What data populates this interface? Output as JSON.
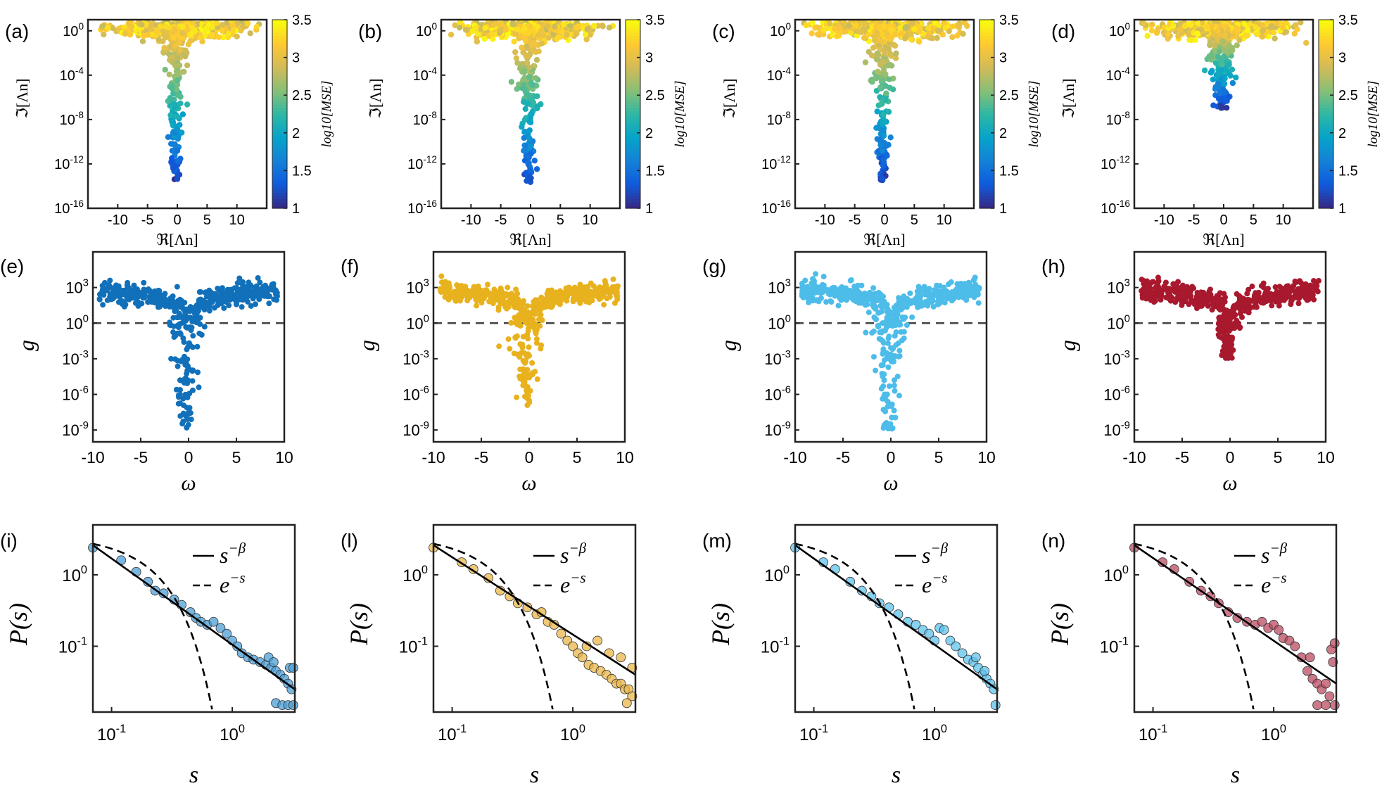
{
  "colors": {
    "blue": "#1170b9",
    "gold": "#e8b21e",
    "light_blue": "#4dbce9",
    "crimson": "#a8192e",
    "axis": "#222222",
    "dashed": "#444444",
    "parula": [
      "#352a87",
      "#0f5cdd",
      "#1481d6",
      "#06a4ca",
      "#2eb7a4",
      "#87bf77",
      "#d1bb59",
      "#fec832",
      "#f9fb0e"
    ]
  },
  "row1": {
    "xlabel": "ℜ[Λn]",
    "ylabel": "ℑ[Λn]",
    "colorbar_label": "log10[MSE]",
    "colorbar_ticks": [
      "1",
      "1.5",
      "2",
      "2.5",
      "3",
      "3.5"
    ],
    "xticks": [
      "-10",
      "-5",
      "0",
      "5",
      "10"
    ],
    "yticks": [
      {
        "base": "10",
        "exp": "0"
      },
      {
        "base": "10",
        "exp": "-4"
      },
      {
        "base": "10",
        "exp": "-8"
      },
      {
        "base": "10",
        "exp": "-12"
      },
      {
        "base": "10",
        "exp": "-16"
      }
    ],
    "panels": [
      {
        "id": "a",
        "label": "(a)"
      },
      {
        "id": "b",
        "label": "(b)"
      },
      {
        "id": "c",
        "label": "(c)"
      },
      {
        "id": "d",
        "label": "(d)"
      }
    ]
  },
  "row2": {
    "xlabel": "ω",
    "ylabel": "g",
    "xticks": [
      "-10",
      "-5",
      "0",
      "5",
      "10"
    ],
    "yticks": [
      {
        "base": "10",
        "exp": "3"
      },
      {
        "base": "10",
        "exp": "0"
      },
      {
        "base": "10",
        "exp": "-3"
      },
      {
        "base": "10",
        "exp": "-6"
      },
      {
        "base": "10",
        "exp": "-9"
      }
    ],
    "panels": [
      {
        "id": "e",
        "label": "(e)",
        "color": "#1170b9"
      },
      {
        "id": "f",
        "label": "(f)",
        "color": "#e8b21e"
      },
      {
        "id": "g",
        "label": "(g)",
        "color": "#4dbce9"
      },
      {
        "id": "h",
        "label": "(h)",
        "color": "#a8192e"
      }
    ]
  },
  "row3": {
    "xlabel": "s",
    "ylabel": "P(s)",
    "legend": [
      {
        "style": "solid",
        "base": "s",
        "exp": "−β"
      },
      {
        "style": "dashed",
        "base": "e",
        "exp": "−s"
      }
    ],
    "xticks": [
      {
        "base": "10",
        "exp": "-1"
      },
      {
        "base": "10",
        "exp": "0"
      }
    ],
    "yticks": [
      {
        "base": "10",
        "exp": "0"
      },
      {
        "base": "10",
        "exp": "-1"
      }
    ],
    "panels": [
      {
        "id": "i",
        "label": "(i)",
        "color": "#4d9fd6"
      },
      {
        "id": "l",
        "label": "(l)",
        "color": "#e9b74a"
      },
      {
        "id": "m",
        "label": "(m)",
        "color": "#5fc2ec"
      },
      {
        "id": "n",
        "label": "(n)",
        "color": "#b94b62"
      }
    ]
  },
  "chart_data": [
    {
      "type": "scatter",
      "panel": "(a)",
      "xlabel": "ℜ[Λn]",
      "ylabel": "ℑ[Λn]",
      "xlim": [
        -15,
        15
      ],
      "ylim": [
        1e-16,
        10
      ],
      "yscale": "log",
      "colorbar": {
        "label": "log10[MSE]",
        "range": [
          1,
          3.5
        ]
      },
      "branch_min_y": 3e-14
    },
    {
      "type": "scatter",
      "panel": "(b)",
      "xlabel": "ℜ[Λn]",
      "ylabel": "ℑ[Λn]",
      "xlim": [
        -15,
        15
      ],
      "ylim": [
        1e-16,
        10
      ],
      "yscale": "log",
      "colorbar": {
        "label": "log10[MSE]",
        "range": [
          1,
          3.5
        ]
      },
      "branch_min_y": 1e-14
    },
    {
      "type": "scatter",
      "panel": "(c)",
      "xlabel": "ℜ[Λn]",
      "ylabel": "ℑ[Λn]",
      "xlim": [
        -15,
        15
      ],
      "ylim": [
        1e-16,
        10
      ],
      "yscale": "log",
      "colorbar": {
        "label": "log10[MSE]",
        "range": [
          1,
          3.5
        ]
      },
      "branch_min_y": 3e-14
    },
    {
      "type": "scatter",
      "panel": "(d)",
      "xlabel": "ℜ[Λn]",
      "ylabel": "ℑ[Λn]",
      "xlim": [
        -15,
        15
      ],
      "ylim": [
        1e-16,
        10
      ],
      "yscale": "log",
      "colorbar": {
        "label": "log10[MSE]",
        "range": [
          1,
          3.5
        ]
      },
      "branch_min_y": 1e-07
    },
    {
      "type": "scatter",
      "panel": "(e)",
      "xlabel": "ω",
      "ylabel": "g",
      "xlim": [
        -10,
        10
      ],
      "ylim": [
        1e-10,
        1000000.0
      ],
      "yscale": "log",
      "reference_line": {
        "y": 1,
        "style": "dashed"
      },
      "min_g": 1e-09
    },
    {
      "type": "scatter",
      "panel": "(f)",
      "xlabel": "ω",
      "ylabel": "g",
      "xlim": [
        -10,
        10
      ],
      "ylim": [
        1e-10,
        1000000.0
      ],
      "yscale": "log",
      "reference_line": {
        "y": 1,
        "style": "dashed"
      },
      "min_g": 1e-07
    },
    {
      "type": "scatter",
      "panel": "(g)",
      "xlabel": "ω",
      "ylabel": "g",
      "xlim": [
        -10,
        10
      ],
      "ylim": [
        1e-10,
        1000000.0
      ],
      "yscale": "log",
      "reference_line": {
        "y": 1,
        "style": "dashed"
      },
      "min_g": 1e-09
    },
    {
      "type": "scatter",
      "panel": "(h)",
      "xlabel": "ω",
      "ylabel": "g",
      "xlim": [
        -10,
        10
      ],
      "ylim": [
        1e-10,
        1000000.0
      ],
      "yscale": "log",
      "reference_line": {
        "y": 1,
        "style": "dashed"
      },
      "min_g": 0.001
    },
    {
      "type": "scatter",
      "panel": "(i)",
      "xlabel": "s",
      "ylabel": "P(s)",
      "xlim": [
        0.07,
        3.3
      ],
      "ylim": [
        0.012,
        5
      ],
      "xscale": "log",
      "yscale": "log",
      "fits": [
        {
          "name": "s^-β",
          "kind": "power",
          "x0": 0.07,
          "y0": 2.6,
          "x1": 3.3,
          "y1": 0.025
        },
        {
          "name": "e^-s",
          "kind": "exponential"
        }
      ],
      "points": [
        [
          0.07,
          2.4
        ],
        [
          0.12,
          1.6
        ],
        [
          0.16,
          1.1
        ],
        [
          0.2,
          0.8
        ],
        [
          0.23,
          0.6
        ],
        [
          0.27,
          0.55
        ],
        [
          0.33,
          0.45
        ],
        [
          0.38,
          0.38
        ],
        [
          0.45,
          0.3
        ],
        [
          0.5,
          0.25
        ],
        [
          0.55,
          0.22
        ],
        [
          0.62,
          0.2
        ],
        [
          0.7,
          0.22
        ],
        [
          0.8,
          0.18
        ],
        [
          0.9,
          0.15
        ],
        [
          1.0,
          0.12
        ],
        [
          1.1,
          0.1
        ],
        [
          1.2,
          0.08
        ],
        [
          1.35,
          0.07
        ],
        [
          1.5,
          0.065
        ],
        [
          1.7,
          0.06
        ],
        [
          1.9,
          0.055
        ],
        [
          2.1,
          0.05
        ],
        [
          2.3,
          0.045
        ],
        [
          2.5,
          0.04
        ],
        [
          2.7,
          0.035
        ],
        [
          2.9,
          0.03
        ],
        [
          3.1,
          0.025
        ],
        [
          2.3,
          0.016
        ],
        [
          2.6,
          0.015
        ],
        [
          2.9,
          0.015
        ],
        [
          3.2,
          0.015
        ],
        [
          2.0,
          0.07
        ],
        [
          2.2,
          0.06
        ],
        [
          3.0,
          0.05
        ],
        [
          3.2,
          0.05
        ]
      ]
    },
    {
      "type": "scatter",
      "panel": "(l)",
      "xlabel": "s",
      "ylabel": "P(s)",
      "xlim": [
        0.07,
        3.3
      ],
      "ylim": [
        0.012,
        5
      ],
      "xscale": "log",
      "yscale": "log",
      "fits": [
        {
          "name": "s^-β",
          "kind": "power",
          "x0": 0.07,
          "y0": 2.6,
          "x1": 3.3,
          "y1": 0.04
        },
        {
          "name": "e^-s",
          "kind": "exponential"
        }
      ],
      "points": [
        [
          0.07,
          2.4
        ],
        [
          0.12,
          1.5
        ],
        [
          0.15,
          1.2
        ],
        [
          0.2,
          0.9
        ],
        [
          0.25,
          0.6
        ],
        [
          0.3,
          0.5
        ],
        [
          0.35,
          0.4
        ],
        [
          0.42,
          0.35
        ],
        [
          0.5,
          0.28
        ],
        [
          0.55,
          0.3
        ],
        [
          0.62,
          0.22
        ],
        [
          0.7,
          0.2
        ],
        [
          0.8,
          0.15
        ],
        [
          0.9,
          0.12
        ],
        [
          1.0,
          0.1
        ],
        [
          1.1,
          0.08
        ],
        [
          1.2,
          0.07
        ],
        [
          1.35,
          0.055
        ],
        [
          1.5,
          0.05
        ],
        [
          1.7,
          0.045
        ],
        [
          1.9,
          0.04
        ],
        [
          2.1,
          0.035
        ],
        [
          2.3,
          0.03
        ],
        [
          2.5,
          0.03
        ],
        [
          2.7,
          0.025
        ],
        [
          2.9,
          0.025
        ],
        [
          3.1,
          0.02
        ],
        [
          2.0,
          0.08
        ],
        [
          2.5,
          0.07
        ],
        [
          3.1,
          0.05
        ],
        [
          2.8,
          0.016
        ],
        [
          1.6,
          0.12
        ],
        [
          1.3,
          0.1
        ]
      ]
    },
    {
      "type": "scatter",
      "panel": "(m)",
      "xlabel": "s",
      "ylabel": "P(s)",
      "xlim": [
        0.07,
        3.3
      ],
      "ylim": [
        0.012,
        5
      ],
      "xscale": "log",
      "yscale": "log",
      "fits": [
        {
          "name": "s^-β",
          "kind": "power",
          "x0": 0.07,
          "y0": 2.6,
          "x1": 3.3,
          "y1": 0.025
        },
        {
          "name": "e^-s",
          "kind": "exponential"
        }
      ],
      "points": [
        [
          0.07,
          2.4
        ],
        [
          0.12,
          1.5
        ],
        [
          0.15,
          1.2
        ],
        [
          0.2,
          0.8
        ],
        [
          0.25,
          0.6
        ],
        [
          0.3,
          0.5
        ],
        [
          0.35,
          0.4
        ],
        [
          0.42,
          0.35
        ],
        [
          0.5,
          0.28
        ],
        [
          0.6,
          0.22
        ],
        [
          0.7,
          0.2
        ],
        [
          0.8,
          0.17
        ],
        [
          0.9,
          0.15
        ],
        [
          1.0,
          0.12
        ],
        [
          1.1,
          0.18
        ],
        [
          1.2,
          0.17
        ],
        [
          1.35,
          0.12
        ],
        [
          1.5,
          0.1
        ],
        [
          1.7,
          0.08
        ],
        [
          1.9,
          0.065
        ],
        [
          2.1,
          0.06
        ],
        [
          2.3,
          0.05
        ],
        [
          2.5,
          0.04
        ],
        [
          2.7,
          0.035
        ],
        [
          2.9,
          0.03
        ],
        [
          3.1,
          0.025
        ],
        [
          3.2,
          0.015
        ],
        [
          2.6,
          0.045
        ],
        [
          2.2,
          0.07
        ]
      ]
    },
    {
      "type": "scatter",
      "panel": "(n)",
      "xlabel": "s",
      "ylabel": "P(s)",
      "xlim": [
        0.07,
        3.3
      ],
      "ylim": [
        0.012,
        5
      ],
      "xscale": "log",
      "yscale": "log",
      "fits": [
        {
          "name": "s^-β",
          "kind": "power",
          "x0": 0.07,
          "y0": 2.6,
          "x1": 3.3,
          "y1": 0.03
        },
        {
          "name": "e^-s",
          "kind": "exponential"
        }
      ],
      "points": [
        [
          0.07,
          2.4
        ],
        [
          0.12,
          1.5
        ],
        [
          0.15,
          1.2
        ],
        [
          0.2,
          0.8
        ],
        [
          0.25,
          0.6
        ],
        [
          0.3,
          0.5
        ],
        [
          0.35,
          0.4
        ],
        [
          0.42,
          0.3
        ],
        [
          0.5,
          0.25
        ],
        [
          0.6,
          0.22
        ],
        [
          0.7,
          0.2
        ],
        [
          0.8,
          0.22
        ],
        [
          0.9,
          0.18
        ],
        [
          1.0,
          0.2
        ],
        [
          1.1,
          0.17
        ],
        [
          1.2,
          0.13
        ],
        [
          1.35,
          0.12
        ],
        [
          1.5,
          0.1
        ],
        [
          1.7,
          0.07
        ],
        [
          1.9,
          0.045
        ],
        [
          2.1,
          0.035
        ],
        [
          2.3,
          0.03
        ],
        [
          2.5,
          0.025
        ],
        [
          2.7,
          0.03
        ],
        [
          2.9,
          0.02
        ],
        [
          3.1,
          0.06
        ],
        [
          2.3,
          0.015
        ],
        [
          2.7,
          0.015
        ],
        [
          3.2,
          0.015
        ],
        [
          2.0,
          0.07
        ],
        [
          3.0,
          0.09
        ],
        [
          3.2,
          0.11
        ]
      ]
    }
  ]
}
